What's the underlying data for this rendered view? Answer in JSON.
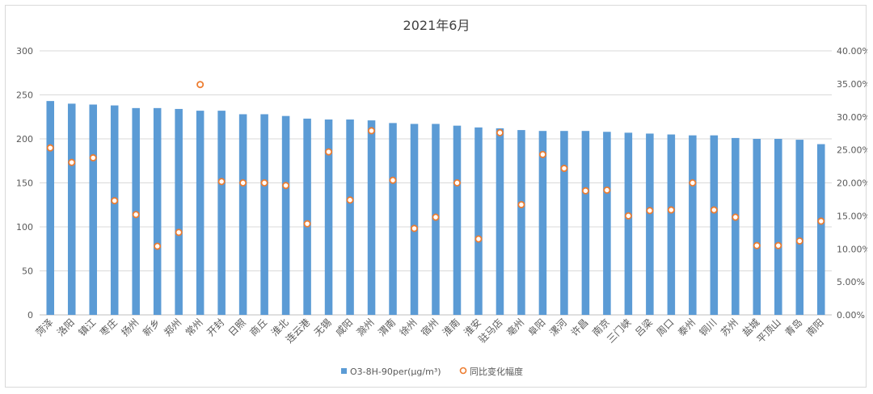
{
  "chart_data": {
    "type": "bar",
    "title": "2021年6月",
    "categories": [
      "菏泽",
      "洛阳",
      "镇江",
      "枣庄",
      "扬州",
      "新乡",
      "郑州",
      "常州",
      "开封",
      "日照",
      "商丘",
      "淮北",
      "连云港",
      "无锡",
      "咸阳",
      "滁州",
      "渭南",
      "徐州",
      "宿州",
      "淮南",
      "淮安",
      "驻马店",
      "亳州",
      "阜阳",
      "漯河",
      "许昌",
      "南京",
      "三门峡",
      "吕梁",
      "周口",
      "泰州",
      "铜川",
      "苏州",
      "盐城",
      "平顶山",
      "青岛",
      "南阳"
    ],
    "series": [
      {
        "name": "O3-8H-90per(μg/m³)",
        "type": "bar",
        "axis": "left",
        "color": "#5b9bd5",
        "values": [
          243,
          240,
          239,
          238,
          235,
          235,
          234,
          232,
          232,
          228,
          228,
          226,
          223,
          222,
          222,
          221,
          218,
          217,
          217,
          215,
          213,
          212,
          210,
          209,
          209,
          209,
          208,
          207,
          206,
          205,
          204,
          204,
          201,
          200,
          200,
          199,
          194
        ]
      },
      {
        "name": "同比变化幅度",
        "type": "scatter",
        "axis": "right",
        "color": "#ed7d31",
        "values": [
          25.3,
          23.1,
          23.8,
          17.3,
          15.2,
          10.4,
          12.5,
          34.9,
          20.2,
          20.0,
          20.0,
          19.6,
          13.8,
          24.7,
          17.4,
          27.9,
          20.4,
          13.1,
          14.8,
          20.0,
          11.5,
          27.6,
          16.7,
          24.3,
          22.2,
          18.8,
          18.9,
          15.0,
          15.8,
          15.9,
          20.0,
          15.9,
          14.8,
          10.5,
          10.5,
          11.2,
          14.2
        ]
      }
    ],
    "left_axis": {
      "min": 0,
      "max": 300,
      "step": 50,
      "ticks": [
        "0",
        "50",
        "100",
        "150",
        "200",
        "250",
        "300"
      ]
    },
    "right_axis": {
      "min": 0,
      "max": 40,
      "step": 5,
      "ticks": [
        "0.00%",
        "5.00%",
        "10.00%",
        "15.00%",
        "20.00%",
        "25.00%",
        "30.00%",
        "35.00%",
        "40.00%"
      ]
    },
    "grid": true,
    "legend_position": "bottom"
  }
}
